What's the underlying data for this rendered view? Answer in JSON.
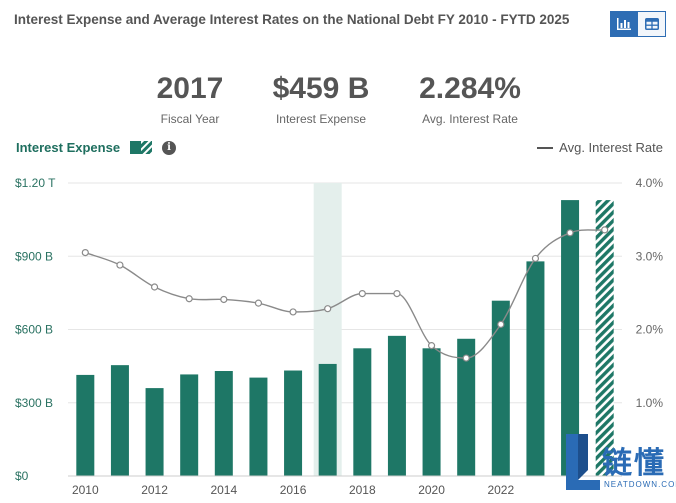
{
  "header": {
    "title": "Interest Expense and Average Interest Rates on the National Debt FY 2010 - FYTD 2025"
  },
  "view_toggle": {
    "chart_icon": "bar-chart-icon",
    "table_icon": "table-icon"
  },
  "stats": [
    {
      "value": "2017",
      "label": "Fiscal Year"
    },
    {
      "value": "$459 B",
      "label": "Interest Expense"
    },
    {
      "value": "2.284%",
      "label": "Avg. Interest Rate"
    }
  ],
  "legend": {
    "bars_label": "Interest Expense",
    "line_label": "Avg. Interest Rate",
    "info_icon": "info-icon"
  },
  "watermark": {
    "chinese": "链懂",
    "sub": "NEATDOWN.COM"
  },
  "colors": {
    "bar": "#1e7766",
    "highlight": "#e4efec",
    "line": "#8a8a8a",
    "grid": "#e6e6e6",
    "axis_left_text": "#2a7262",
    "toggle_active": "#2e6db4"
  },
  "chart_data": {
    "type": "bar",
    "categories": [
      "2010",
      "2011",
      "2012",
      "2013",
      "2014",
      "2015",
      "2016",
      "2017",
      "2018",
      "2019",
      "2020",
      "2021",
      "2022",
      "2023",
      "2024",
      "2025"
    ],
    "x_tick_labels": [
      "2010",
      "2012",
      "2014",
      "2016",
      "2018",
      "2020",
      "2022"
    ],
    "series": [
      {
        "name": "Interest Expense",
        "axis": "left",
        "values": [
          414,
          454,
          360,
          416,
          430,
          403,
          432,
          459,
          523,
          574,
          523,
          562,
          718,
          879,
          1130,
          1130
        ],
        "partial_last": true
      },
      {
        "name": "Avg. Interest Rate",
        "axis": "right",
        "type": "line",
        "values": [
          3.05,
          2.88,
          2.58,
          2.42,
          2.41,
          2.36,
          2.24,
          2.284,
          2.49,
          2.49,
          1.78,
          1.61,
          2.07,
          2.97,
          3.32,
          3.36
        ]
      }
    ],
    "y_left": {
      "ticks": [
        0,
        300,
        600,
        900,
        1200
      ],
      "labels": [
        "$0",
        "$300 B",
        "$600 B",
        "$900 B",
        "$1.20 T"
      ],
      "ylim": [
        0,
        1200
      ]
    },
    "y_right": {
      "ticks": [
        1.0,
        2.0,
        3.0,
        4.0
      ],
      "labels": [
        "1.0%",
        "2.0%",
        "3.0%",
        "4.0%"
      ],
      "ylim": [
        0,
        4.0
      ]
    },
    "highlighted_category": "2017",
    "grid": true
  }
}
